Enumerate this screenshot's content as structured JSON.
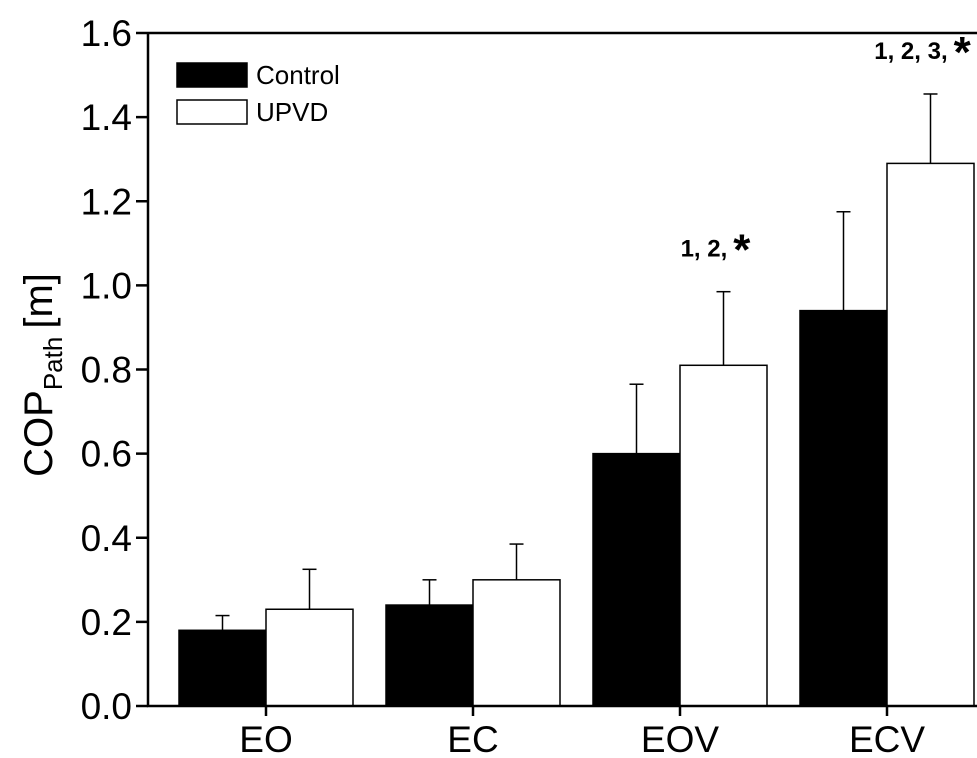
{
  "chart_data": {
    "type": "bar",
    "categories": [
      "EO",
      "EC",
      "EOV",
      "ECV"
    ],
    "series": [
      {
        "name": "Control",
        "color": "#000000",
        "values": [
          0.18,
          0.24,
          0.6,
          0.94
        ],
        "errors": [
          0.035,
          0.06,
          0.165,
          0.235
        ]
      },
      {
        "name": "UPVD",
        "color": "#ffffff",
        "values": [
          0.23,
          0.3,
          0.81,
          1.29
        ],
        "errors": [
          0.095,
          0.085,
          0.175,
          0.165
        ]
      }
    ],
    "ylabel": {
      "main": "COP",
      "sub": "Path",
      "unit": "[m]"
    },
    "ylim": [
      0,
      1.6
    ],
    "yticks": [
      "0.0",
      "0.2",
      "0.4",
      "0.6",
      "0.8",
      "1.0",
      "1.2",
      "1.4",
      "1.6"
    ],
    "legend_position": "top-left",
    "grid": false,
    "annotations": [
      {
        "category": "EOV",
        "text": "1, 2,",
        "marker": "*"
      },
      {
        "category": "ECV",
        "text": "1, 2, 3,",
        "marker": "*"
      }
    ]
  }
}
